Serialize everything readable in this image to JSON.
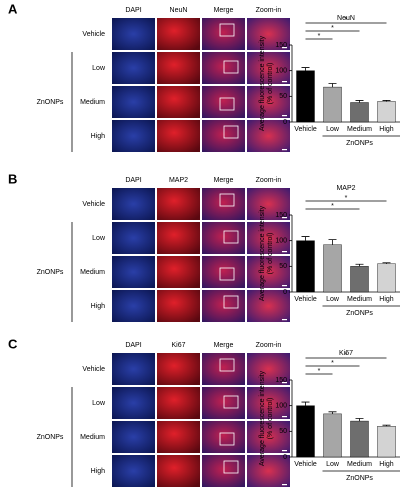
{
  "panels": [
    {
      "label": "A",
      "columns": [
        "DAPI",
        "NeuN",
        "Merge",
        "Zoom-in"
      ],
      "rows": [
        "Vehicle",
        "Low",
        "Medium",
        "High"
      ],
      "group": "ZnONPs"
    },
    {
      "label": "B",
      "columns": [
        "DAPI",
        "MAP2",
        "Merge",
        "Zoom-in"
      ],
      "rows": [
        "Vehicle",
        "Low",
        "Medium",
        "High"
      ],
      "group": "ZnONPs"
    },
    {
      "label": "C",
      "columns": [
        "DAPI",
        "Ki67",
        "Merge",
        "Zoom-in"
      ],
      "rows": [
        "Vehicle",
        "Low",
        "Medium",
        "High"
      ],
      "group": "ZnONPs"
    }
  ],
  "chart_data": [
    {
      "type": "bar",
      "title": "NeuN",
      "ylabel": [
        "Average fluorescence intensity",
        "(% of control)"
      ],
      "categories": [
        "Vehicle",
        "Low",
        "Medium",
        "High"
      ],
      "group_label": "ZnONPs",
      "values": [
        100,
        68,
        38,
        40
      ],
      "errors": [
        6,
        7,
        4,
        2
      ],
      "colors": [
        "#000000",
        "#a6a6a6",
        "#6e6e6e",
        "#d3d3d3"
      ],
      "ylim": [
        0,
        150
      ],
      "yticks": [
        0,
        50,
        100,
        150
      ],
      "significance": [
        {
          "label": "*",
          "to": "Low"
        },
        {
          "label": "*",
          "to": "Medium"
        },
        {
          "label": "*",
          "to": "High"
        }
      ]
    },
    {
      "type": "bar",
      "title": "MAP2",
      "ylabel": [
        "Average fluorescence intensity",
        "(% of control)"
      ],
      "categories": [
        "Vehicle",
        "Low",
        "Medium",
        "High"
      ],
      "group_label": "ZnONPs",
      "values": [
        100,
        92,
        50,
        55
      ],
      "errors": [
        8,
        10,
        4,
        2
      ],
      "colors": [
        "#000000",
        "#a6a6a6",
        "#6e6e6e",
        "#d3d3d3"
      ],
      "ylim": [
        0,
        150
      ],
      "yticks": [
        0,
        50,
        100,
        150
      ],
      "significance": [
        {
          "label": "*",
          "to": "Medium"
        },
        {
          "label": "*",
          "to": "High"
        }
      ]
    },
    {
      "type": "bar",
      "title": "Ki67",
      "ylabel": [
        "Average fluorescence intensity",
        "(% of control)"
      ],
      "categories": [
        "Vehicle",
        "Low",
        "Medium",
        "High"
      ],
      "group_label": "ZnONPs",
      "values": [
        100,
        84,
        70,
        60
      ],
      "errors": [
        7,
        4,
        5,
        2
      ],
      "colors": [
        "#000000",
        "#a6a6a6",
        "#6e6e6e",
        "#d3d3d3"
      ],
      "ylim": [
        0,
        150
      ],
      "yticks": [
        0,
        50,
        100,
        150
      ],
      "significance": [
        {
          "label": "*",
          "to": "Low"
        },
        {
          "label": "*",
          "to": "Medium"
        },
        {
          "label": "*",
          "to": "High"
        }
      ]
    }
  ]
}
